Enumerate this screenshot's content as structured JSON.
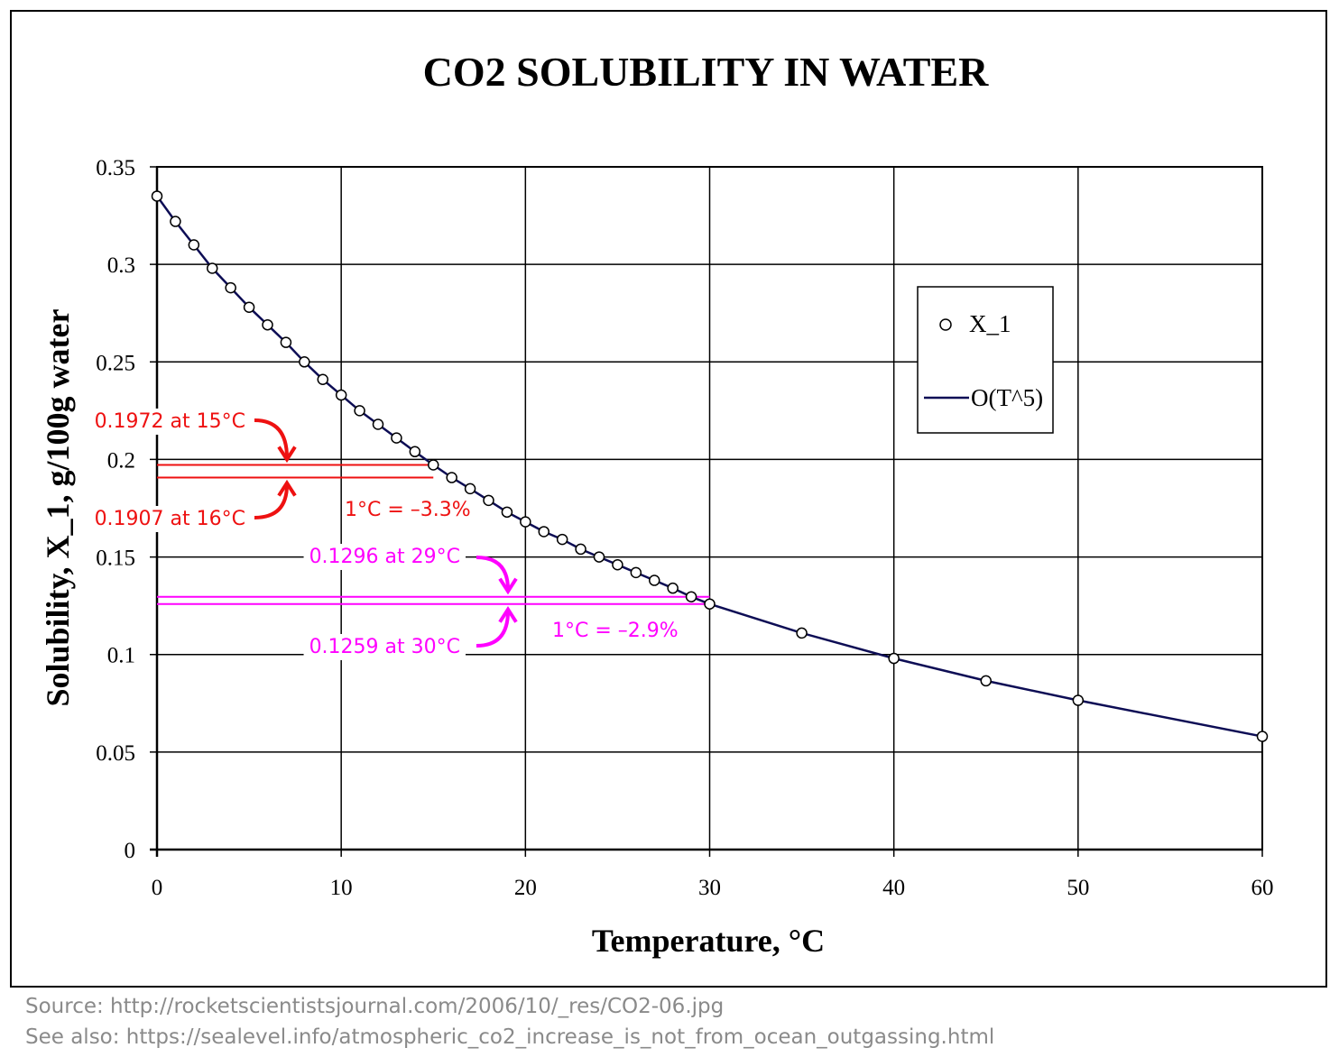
{
  "chart_data": {
    "type": "line",
    "title": "CO2 SOLUBILITY IN WATER",
    "xlabel": "Temperature, °C",
    "ylabel": "Solubility, X_1, g/100g water",
    "xlim": [
      0,
      60
    ],
    "ylim": [
      0,
      0.35
    ],
    "xticks": [
      0,
      10,
      20,
      30,
      40,
      50,
      60
    ],
    "yticks": [
      0,
      0.05,
      0.1,
      0.15,
      0.2,
      0.25,
      0.3,
      0.35
    ],
    "xtick_labels": [
      "0",
      "10",
      "20",
      "30",
      "40",
      "50",
      "60"
    ],
    "ytick_labels": [
      "0",
      "0.05",
      "0.1",
      "0.15",
      "0.2",
      "0.25",
      "0.3",
      "0.35"
    ],
    "grid": true,
    "legend_position": "upper-right",
    "series": [
      {
        "name": "X_1",
        "style": "markers",
        "marker": "open-circle",
        "x": [
          0,
          1,
          2,
          3,
          4,
          5,
          6,
          7,
          8,
          9,
          10,
          11,
          12,
          13,
          14,
          15,
          16,
          17,
          18,
          19,
          20,
          21,
          22,
          23,
          24,
          25,
          26,
          27,
          28,
          29,
          30,
          35,
          40,
          45,
          50,
          60
        ],
        "y": [
          0.335,
          0.322,
          0.31,
          0.298,
          0.288,
          0.278,
          0.269,
          0.26,
          0.25,
          0.241,
          0.233,
          0.225,
          0.218,
          0.211,
          0.204,
          0.1972,
          0.1907,
          0.185,
          0.179,
          0.173,
          0.168,
          0.163,
          0.159,
          0.154,
          0.15,
          0.146,
          0.142,
          0.138,
          0.134,
          0.1296,
          0.1259,
          0.111,
          0.098,
          0.0865,
          0.0765,
          0.058
        ]
      },
      {
        "name": "O(T^5)",
        "style": "line",
        "color": "#0d0d55",
        "x": [
          0,
          1,
          2,
          3,
          4,
          5,
          6,
          7,
          8,
          9,
          10,
          11,
          12,
          13,
          14,
          15,
          16,
          17,
          18,
          19,
          20,
          21,
          22,
          23,
          24,
          25,
          26,
          27,
          28,
          29,
          30,
          35,
          40,
          45,
          50,
          60
        ],
        "y": [
          0.335,
          0.322,
          0.31,
          0.298,
          0.288,
          0.278,
          0.269,
          0.26,
          0.25,
          0.241,
          0.233,
          0.225,
          0.218,
          0.211,
          0.204,
          0.1972,
          0.1907,
          0.185,
          0.179,
          0.173,
          0.168,
          0.163,
          0.159,
          0.154,
          0.15,
          0.146,
          0.142,
          0.138,
          0.134,
          0.1296,
          0.1259,
          0.111,
          0.098,
          0.0865,
          0.0765,
          0.058
        ]
      }
    ],
    "annotations": [
      {
        "group": "red",
        "color": "#ee1111",
        "text_upper": "0.1972 at 15°C",
        "text_lower": "0.1907 at 16°C",
        "delta": "1°C = –3.3%",
        "y_upper": 0.1972,
        "y_lower": 0.1907,
        "x_end": 15
      },
      {
        "group": "magenta",
        "color": "#ff00ff",
        "text_upper": "0.1296 at 29°C",
        "text_lower": "0.1259 at 30°C",
        "delta": "1°C = –2.9%",
        "y_upper": 0.1296,
        "y_lower": 0.1259,
        "x_end": 30
      }
    ]
  },
  "footer": {
    "source": "Source: http://rocketscientistsjournal.com/2006/10/_res/CO2-06.jpg",
    "see_also": "See also: https://sealevel.info/atmospheric_co2_increase_is_not_from_ocean_outgassing.html"
  }
}
